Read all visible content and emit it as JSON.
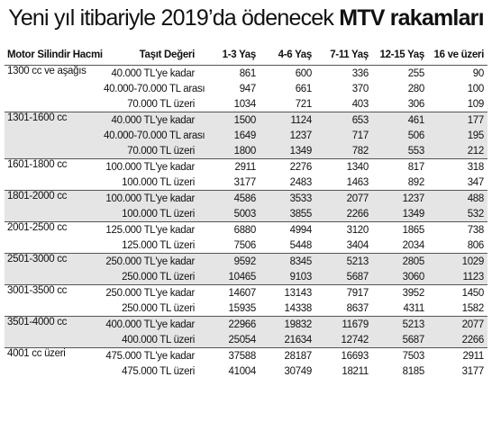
{
  "title_regular": "Yeni yıl itibariyle 2019’da ödenecek",
  "title_bold": "MTV rakamları",
  "table": {
    "header": [
      "Motor Silindir Hacmi",
      "Taşıt Değeri",
      "1-3 Yaş",
      "4-6 Yaş",
      "7-11 Yaş",
      "12-15 Yaş",
      "16 ve üzeri"
    ],
    "groups": [
      {
        "engine": "1300 cc ve aşağıs",
        "rows": [
          [
            "40.000 TL'ye kadar",
            861,
            600,
            336,
            255,
            90
          ],
          [
            "40.000-70.000 TL arası",
            947,
            661,
            370,
            280,
            100
          ],
          [
            "70.000 TL üzeri",
            1034,
            721,
            403,
            306,
            109
          ]
        ]
      },
      {
        "engine": "1301-1600 cc",
        "rows": [
          [
            "40.000 TL'ye kadar",
            1500,
            1124,
            653,
            461,
            177
          ],
          [
            "40.000-70.000 TL arası",
            1649,
            1237,
            717,
            506,
            195
          ],
          [
            "70.000 TL üzeri",
            1800,
            1349,
            782,
            553,
            212
          ]
        ]
      },
      {
        "engine": "1601-1800 cc",
        "rows": [
          [
            "100.000 TL'ye kadar",
            2911,
            2276,
            1340,
            817,
            318
          ],
          [
            "100.000 TL üzeri",
            3177,
            2483,
            1463,
            892,
            347
          ]
        ]
      },
      {
        "engine": "1801-2000 cc",
        "rows": [
          [
            "100.000 TL'ye kadar",
            4586,
            3533,
            2077,
            1237,
            488
          ],
          [
            "100.000 TL üzeri",
            5003,
            3855,
            2266,
            1349,
            532
          ]
        ]
      },
      {
        "engine": "2001-2500 cc",
        "rows": [
          [
            "125.000 TL'ye kadar",
            6880,
            4994,
            3120,
            1865,
            738
          ],
          [
            "125.000 TL üzeri",
            7506,
            5448,
            3404,
            2034,
            806
          ]
        ]
      },
      {
        "engine": "2501-3000 cc",
        "rows": [
          [
            "250.000 TL'ye kadar",
            9592,
            8345,
            5213,
            2805,
            1029
          ],
          [
            "250.000 TL üzeri",
            10465,
            9103,
            5687,
            3060,
            1123
          ]
        ]
      },
      {
        "engine": "3001-3500 cc",
        "rows": [
          [
            "250.000 TL'ye kadar",
            14607,
            13143,
            7917,
            3952,
            1450
          ],
          [
            "250.000 TL üzeri",
            15935,
            14338,
            8637,
            4311,
            1582
          ]
        ]
      },
      {
        "engine": "3501-4000 cc",
        "rows": [
          [
            "400.000 TL'ye kadar",
            22966,
            19832,
            11679,
            5213,
            2077
          ],
          [
            "400.000 TL üzeri",
            25054,
            21634,
            12742,
            5687,
            2266
          ]
        ]
      },
      {
        "engine": "4001 cc üzeri",
        "rows": [
          [
            "475.000 TL'ye kadar",
            37588,
            28187,
            16693,
            7503,
            2911
          ],
          [
            "475.000 TL üzeri",
            41004,
            30749,
            18211,
            8185,
            3177
          ]
        ]
      }
    ]
  }
}
